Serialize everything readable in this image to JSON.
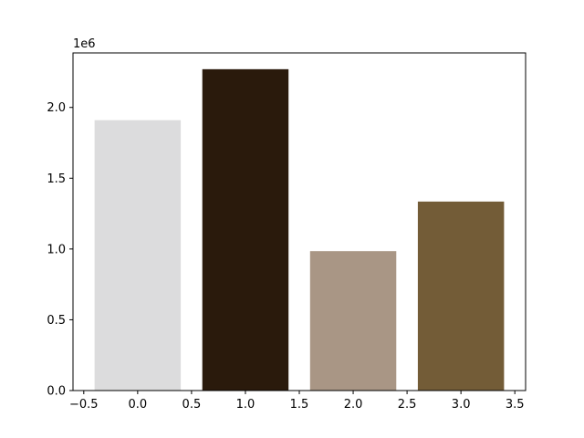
{
  "chart_data": {
    "type": "bar",
    "x": [
      0,
      1,
      2,
      3
    ],
    "values": [
      1910000,
      2270000,
      985000,
      1335000
    ],
    "colors": [
      "#dcdcdd",
      "#2a1a0c",
      "#a99685",
      "#735c37"
    ],
    "title": "",
    "xlabel": "",
    "ylabel": "",
    "xlim": [
      -0.6,
      3.6
    ],
    "ylim": [
      0,
      2385000
    ],
    "xticks": [
      -0.5,
      0.0,
      0.5,
      1.0,
      1.5,
      2.0,
      2.5,
      3.0,
      3.5
    ],
    "xtick_labels": [
      "−0.5",
      "0.0",
      "0.5",
      "1.0",
      "1.5",
      "2.0",
      "2.5",
      "3.0",
      "3.5"
    ],
    "yticks": [
      0,
      500000,
      1000000,
      1500000,
      2000000
    ],
    "ytick_labels": [
      "0.0",
      "0.5",
      "1.0",
      "1.5",
      "2.0"
    ],
    "y_offset_label": "1e6",
    "bar_width": 0.8,
    "grid": false,
    "legend": "none"
  }
}
